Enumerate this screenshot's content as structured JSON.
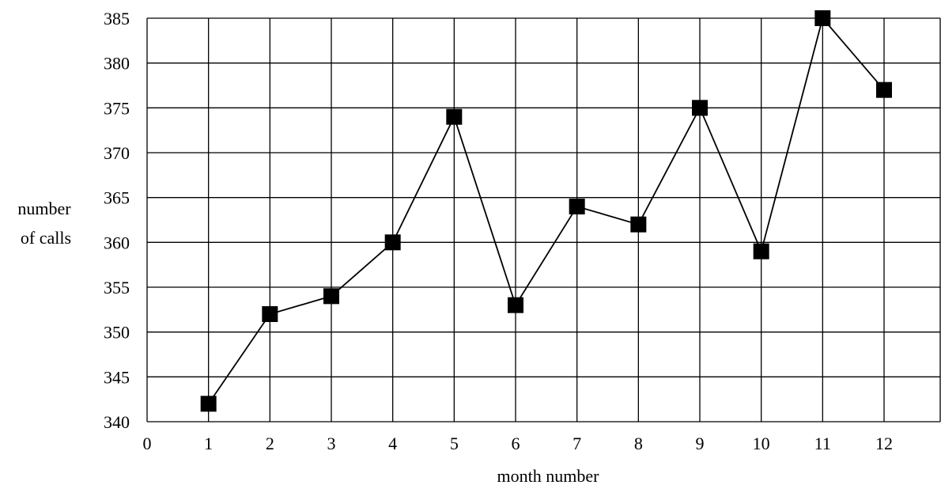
{
  "chart_data": {
    "type": "line",
    "title": "",
    "xlabel": "month number",
    "ylabel_lines": [
      "number",
      "of calls"
    ],
    "xlim": [
      0,
      12
    ],
    "ylim": [
      340,
      385
    ],
    "x_ticks": [
      "0",
      "1",
      "2",
      "3",
      "4",
      "5",
      "6",
      "7",
      "8",
      "9",
      "10",
      "11",
      "12"
    ],
    "y_ticks": [
      "340",
      "345",
      "350",
      "355",
      "360",
      "365",
      "370",
      "375",
      "380",
      "385"
    ],
    "grid": true,
    "legend": "none",
    "marker": "square",
    "line_color": "#000000",
    "series": [
      {
        "x": [
          1,
          2,
          3,
          4,
          5,
          6,
          7,
          8,
          9,
          10,
          11,
          12
        ],
        "values": [
          342,
          352,
          354,
          360,
          374,
          353,
          364,
          362,
          375,
          359,
          385,
          377
        ]
      }
    ]
  }
}
